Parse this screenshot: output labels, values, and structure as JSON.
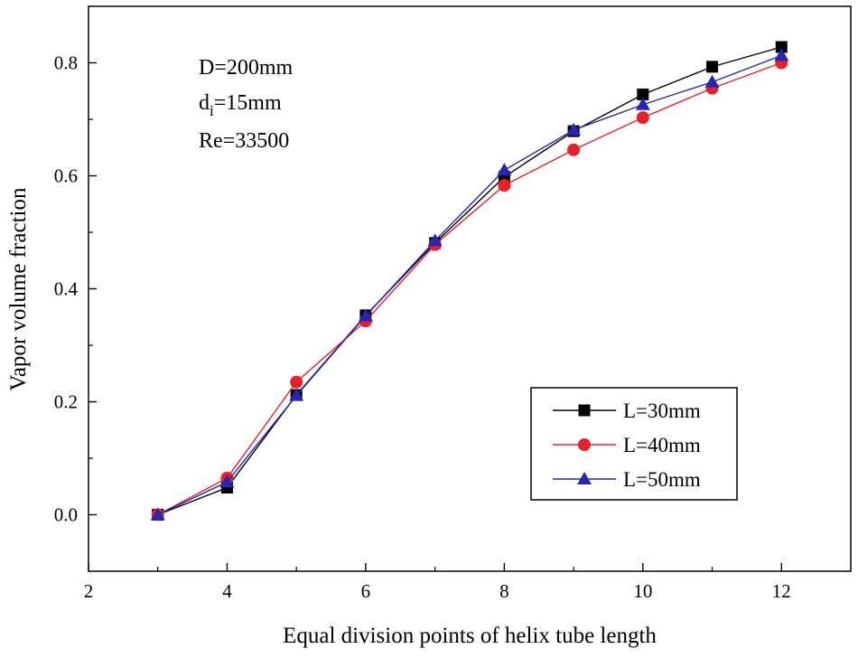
{
  "chart_data": {
    "type": "line",
    "title": "",
    "xlabel": "Equal division points of helix  tube length",
    "ylabel": "Vapor volume fraction",
    "xlim": [
      2,
      13
    ],
    "ylim": [
      -0.1,
      0.9
    ],
    "xticks": [
      2,
      4,
      6,
      8,
      10,
      12
    ],
    "yticks": [
      0.0,
      0.2,
      0.4,
      0.6,
      0.8
    ],
    "xtick_labels": [
      "2",
      "4",
      "6",
      "8",
      "10",
      "12"
    ],
    "ytick_labels": [
      "0.0",
      "0.2",
      "0.4",
      "0.6",
      "0.8"
    ],
    "grid": false,
    "legend_position": "bottom-right",
    "x": [
      3,
      4,
      5,
      6,
      7,
      8,
      9,
      10,
      11,
      12
    ],
    "series": [
      {
        "name": "L=30mm",
        "color": "#000000",
        "marker": "square",
        "values": [
          0.0,
          0.048,
          0.212,
          0.353,
          0.481,
          0.598,
          0.679,
          0.744,
          0.793,
          0.828
        ]
      },
      {
        "name": "L=40mm",
        "color": "#e8202a",
        "marker": "circle",
        "values": [
          0.0,
          0.065,
          0.235,
          0.343,
          0.478,
          0.583,
          0.646,
          0.703,
          0.755,
          0.8
        ]
      },
      {
        "name": "L=50mm",
        "color": "#2626b0",
        "marker": "triangle",
        "values": [
          0.0,
          0.058,
          0.211,
          0.352,
          0.485,
          0.61,
          0.681,
          0.726,
          0.766,
          0.813
        ]
      }
    ],
    "annotations": {
      "line1": "D=200mm",
      "line2_main": "d",
      "line2_sub": "i",
      "line2_rest": "=15mm",
      "line3": "Re=33500"
    }
  }
}
